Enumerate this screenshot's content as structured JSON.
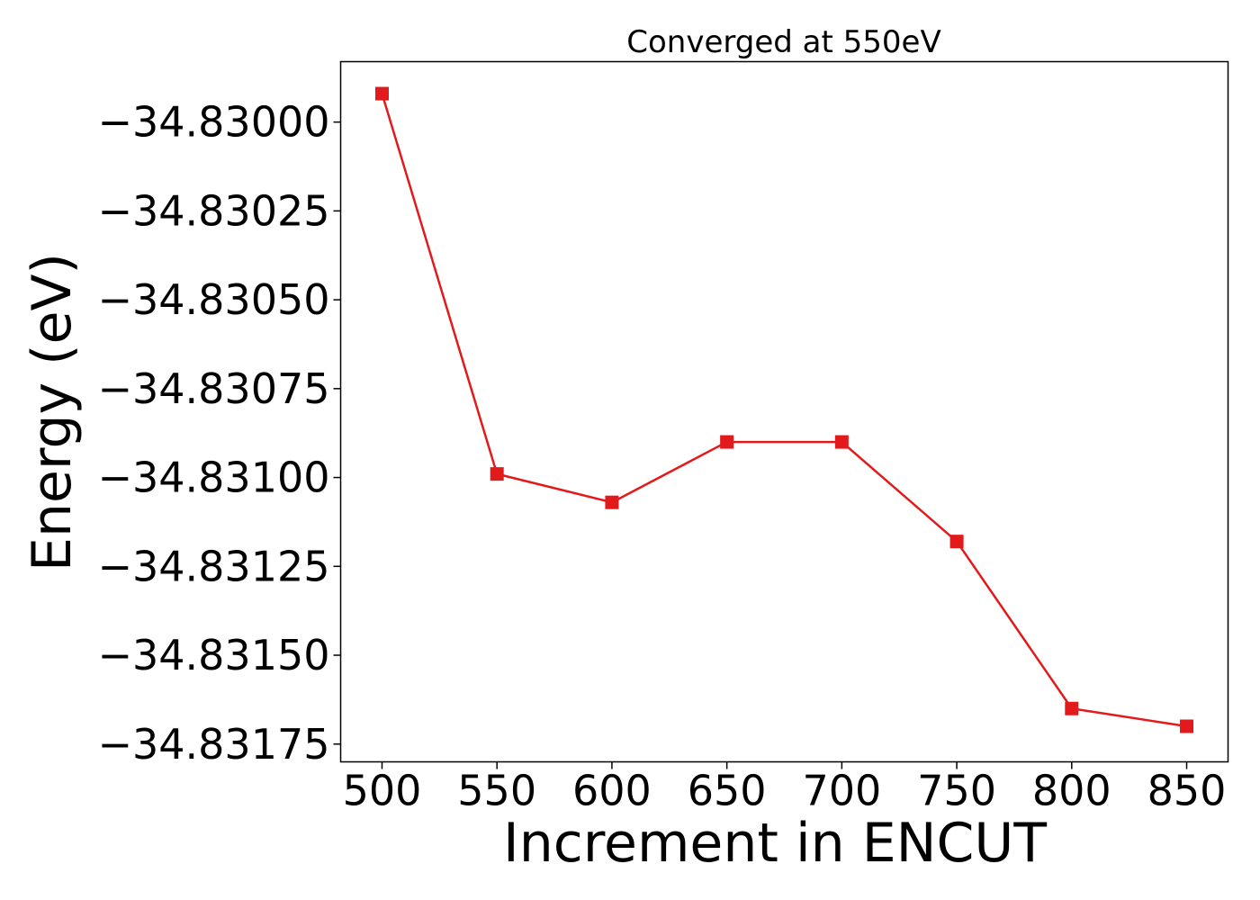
{
  "chart_data": {
    "type": "line",
    "title": "Converged at 550eV",
    "xlabel": "Increment in ENCUT",
    "ylabel": "Energy (eV)",
    "x": [
      500,
      550,
      600,
      650,
      700,
      750,
      800,
      850
    ],
    "series": [
      {
        "values": [
          -34.82992,
          -34.83099,
          -34.83107,
          -34.8309,
          -34.8309,
          -34.83118,
          -34.83165,
          -34.8317
        ],
        "color": "#e31a1c",
        "marker": "square"
      }
    ],
    "x_ticks": [
      500,
      550,
      600,
      650,
      700,
      750,
      800,
      850
    ],
    "x_tick_labels": [
      "500",
      "550",
      "600",
      "650",
      "700",
      "750",
      "800",
      "850"
    ],
    "y_ticks": [
      -34.83,
      -34.83025,
      -34.8305,
      -34.83075,
      -34.831,
      -34.83125,
      -34.8315,
      -34.83175
    ],
    "y_tick_labels": [
      "−34.83000",
      "−34.83025",
      "−34.83050",
      "−34.83075",
      "−34.83100",
      "−34.83125",
      "−34.83150",
      "−34.83175"
    ],
    "xlim": [
      482,
      868
    ],
    "ylim": [
      -34.8318,
      -34.82983
    ],
    "grid": false,
    "legend": "none"
  }
}
